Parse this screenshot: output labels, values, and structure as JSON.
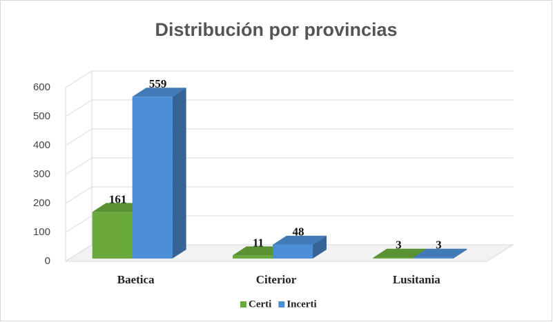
{
  "chart_data": {
    "type": "bar",
    "title": "Distribución por provincias",
    "categories": [
      "Baetica",
      "Citerior",
      "Lusitania"
    ],
    "series": [
      {
        "name": "Certi",
        "color": "#6aaa3c",
        "values": [
          161,
          11,
          3
        ]
      },
      {
        "name": "Incerti",
        "color": "#4d8fd6",
        "values": [
          559,
          48,
          3
        ]
      }
    ],
    "ylim": [
      0,
      600
    ],
    "yticks": [
      0,
      100,
      200,
      300,
      400,
      500,
      600
    ],
    "grid": true,
    "legend": "bottom"
  }
}
